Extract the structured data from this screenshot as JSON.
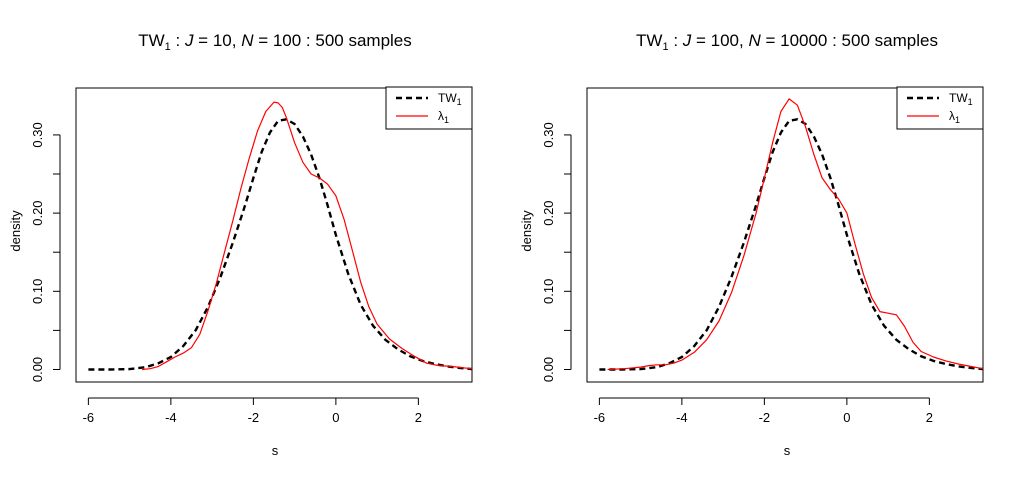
{
  "chart_data": [
    {
      "type": "line",
      "title": {
        "prefix": "TW",
        "sub": "1",
        "rest_a": " : ",
        "J": "J",
        "rest_b": " = 10, ",
        "N": "N",
        "rest_c": " = 100 : 500 samples"
      },
      "xlabel": "s",
      "ylabel": "density",
      "xlim": [
        -6.3,
        3.3
      ],
      "ylim": [
        -0.016,
        0.36
      ],
      "xticks": [
        -6,
        -4,
        -2,
        0,
        2
      ],
      "yticks": [
        0.0,
        0.1,
        0.2,
        0.3
      ],
      "xtick_labels": [
        "-6",
        "-4",
        "-2",
        "0",
        "2"
      ],
      "ytick_labels": [
        "0.00",
        "0.10",
        "0.20",
        "0.30"
      ],
      "legend": {
        "position": "top-right",
        "entries": [
          {
            "label": "TW",
            "sub": "1"
          },
          {
            "label": "λ",
            "sub": "1"
          }
        ]
      },
      "series": [
        {
          "name": "TW1",
          "color": "#000000",
          "style": "dashed",
          "x": [
            -6.0,
            -5.5,
            -5.0,
            -4.6,
            -4.3,
            -4.0,
            -3.7,
            -3.4,
            -3.1,
            -2.8,
            -2.5,
            -2.2,
            -2.0,
            -1.8,
            -1.6,
            -1.4,
            -1.2,
            -1.0,
            -0.8,
            -0.6,
            -0.4,
            -0.2,
            0.0,
            0.3,
            0.6,
            0.9,
            1.2,
            1.5,
            1.8,
            2.1,
            2.4,
            2.7,
            3.0,
            3.3
          ],
          "y": [
            0.0,
            0.0,
            0.0005,
            0.003,
            0.008,
            0.016,
            0.03,
            0.05,
            0.08,
            0.118,
            0.162,
            0.21,
            0.245,
            0.278,
            0.303,
            0.318,
            0.32,
            0.314,
            0.298,
            0.275,
            0.245,
            0.21,
            0.172,
            0.122,
            0.083,
            0.056,
            0.038,
            0.026,
            0.017,
            0.011,
            0.007,
            0.004,
            0.002,
            0.0005
          ]
        },
        {
          "name": "λ1",
          "color": "#ff0000",
          "style": "solid",
          "x": [
            -4.7,
            -4.5,
            -4.3,
            -4.1,
            -3.9,
            -3.7,
            -3.5,
            -3.3,
            -3.1,
            -2.9,
            -2.7,
            -2.5,
            -2.3,
            -2.1,
            -1.9,
            -1.7,
            -1.5,
            -1.4,
            -1.3,
            -1.2,
            -1.0,
            -0.8,
            -0.6,
            -0.4,
            -0.2,
            0.0,
            0.2,
            0.4,
            0.6,
            0.8,
            1.0,
            1.3,
            1.6,
            1.9,
            2.2,
            2.5,
            2.8,
            3.1,
            3.3
          ],
          "y": [
            0.0,
            0.001,
            0.004,
            0.01,
            0.016,
            0.021,
            0.028,
            0.045,
            0.075,
            0.11,
            0.15,
            0.19,
            0.232,
            0.27,
            0.305,
            0.33,
            0.342,
            0.341,
            0.335,
            0.322,
            0.29,
            0.265,
            0.25,
            0.245,
            0.237,
            0.222,
            0.192,
            0.152,
            0.112,
            0.08,
            0.058,
            0.039,
            0.027,
            0.017,
            0.008,
            0.005,
            0.004,
            0.002,
            0.001
          ]
        }
      ]
    },
    {
      "type": "line",
      "title": {
        "prefix": "TW",
        "sub": "1",
        "rest_a": " : ",
        "J": "J",
        "rest_b": " = 100, ",
        "N": "N",
        "rest_c": " = 10000 : 500 samples"
      },
      "xlabel": "s",
      "ylabel": "density",
      "xlim": [
        -6.3,
        3.3
      ],
      "ylim": [
        -0.016,
        0.36
      ],
      "xticks": [
        -6,
        -4,
        -2,
        0,
        2
      ],
      "yticks": [
        0.0,
        0.1,
        0.2,
        0.3
      ],
      "xtick_labels": [
        "-6",
        "-4",
        "-2",
        "0",
        "2"
      ],
      "ytick_labels": [
        "0.00",
        "0.10",
        "0.20",
        "0.30"
      ],
      "legend": {
        "position": "top-right",
        "entries": [
          {
            "label": "TW",
            "sub": "1"
          },
          {
            "label": "λ",
            "sub": "1"
          }
        ]
      },
      "series": [
        {
          "name": "TW1",
          "color": "#000000",
          "style": "dashed",
          "x": [
            -6.0,
            -5.5,
            -5.0,
            -4.6,
            -4.3,
            -4.0,
            -3.7,
            -3.4,
            -3.1,
            -2.8,
            -2.5,
            -2.2,
            -2.0,
            -1.8,
            -1.6,
            -1.4,
            -1.2,
            -1.0,
            -0.8,
            -0.6,
            -0.4,
            -0.2,
            0.0,
            0.3,
            0.6,
            0.9,
            1.2,
            1.5,
            1.8,
            2.1,
            2.4,
            2.7,
            3.0,
            3.3
          ],
          "y": [
            0.0,
            0.0,
            0.0005,
            0.003,
            0.008,
            0.016,
            0.03,
            0.05,
            0.08,
            0.118,
            0.162,
            0.21,
            0.245,
            0.278,
            0.303,
            0.318,
            0.32,
            0.314,
            0.298,
            0.275,
            0.245,
            0.21,
            0.172,
            0.122,
            0.083,
            0.056,
            0.038,
            0.026,
            0.017,
            0.011,
            0.007,
            0.004,
            0.002,
            0.0005
          ]
        },
        {
          "name": "λ1",
          "color": "#ff0000",
          "style": "solid",
          "x": [
            -5.8,
            -5.4,
            -5.0,
            -4.8,
            -4.6,
            -4.4,
            -4.2,
            -4.0,
            -3.7,
            -3.4,
            -3.1,
            -2.8,
            -2.5,
            -2.2,
            -2.0,
            -1.8,
            -1.6,
            -1.4,
            -1.2,
            -1.0,
            -0.8,
            -0.6,
            -0.4,
            -0.2,
            0.0,
            0.2,
            0.4,
            0.6,
            0.8,
            1.0,
            1.2,
            1.4,
            1.6,
            1.8,
            2.1,
            2.4,
            2.7,
            3.0,
            3.3
          ],
          "y": [
            0.0,
            0.001,
            0.003,
            0.005,
            0.006,
            0.006,
            0.008,
            0.012,
            0.022,
            0.038,
            0.062,
            0.098,
            0.145,
            0.2,
            0.245,
            0.29,
            0.33,
            0.346,
            0.338,
            0.31,
            0.275,
            0.245,
            0.23,
            0.218,
            0.2,
            0.16,
            0.122,
            0.092,
            0.074,
            0.072,
            0.07,
            0.055,
            0.035,
            0.023,
            0.016,
            0.011,
            0.007,
            0.004,
            0.001
          ]
        }
      ]
    }
  ]
}
